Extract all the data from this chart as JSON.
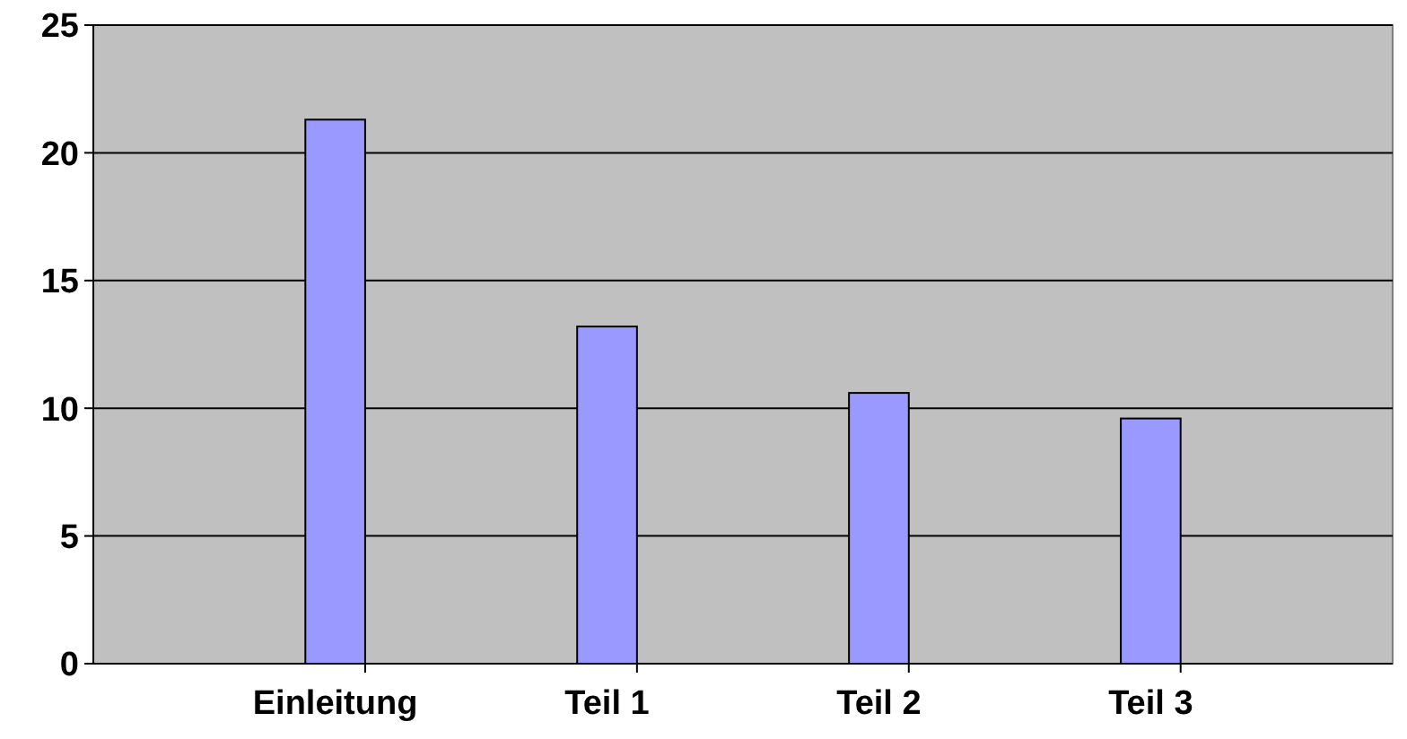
{
  "chart_data": {
    "type": "bar",
    "categories": [
      "Einleitung",
      "Teil 1",
      "Teil 2",
      "Teil 3"
    ],
    "values": [
      21.3,
      13.2,
      10.6,
      9.6
    ],
    "color": "#9999ff",
    "ylim": [
      0,
      25
    ],
    "yticks": [
      0,
      5,
      10,
      15,
      20,
      25
    ],
    "grid": "y"
  }
}
